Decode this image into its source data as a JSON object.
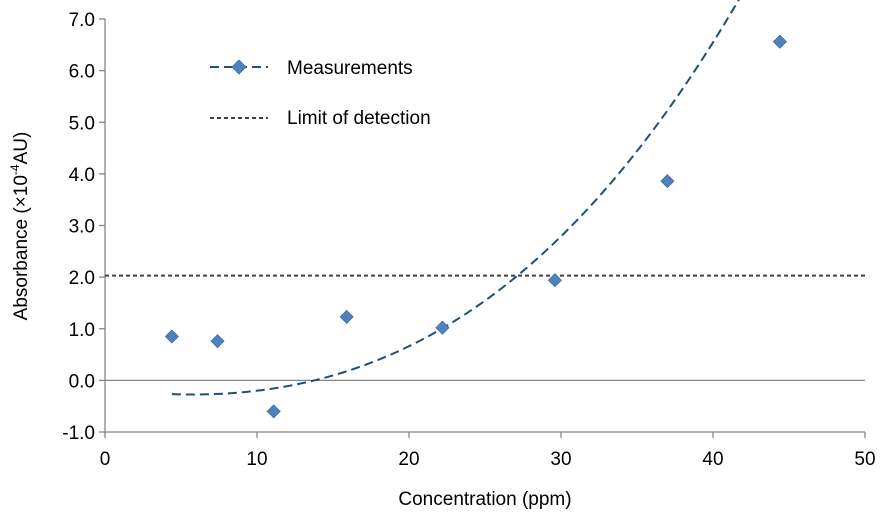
{
  "chart_data": {
    "type": "scatter",
    "xlabel": "Concentration (ppm)",
    "ylabel_parts": {
      "prefix": "Absorbance (×10",
      "sup": "-4",
      "suffix": "AU)"
    },
    "xlim": [
      0,
      50
    ],
    "ylim": [
      -1.0,
      7.0
    ],
    "x_ticks": [
      "0",
      "10",
      "20",
      "30",
      "40",
      "50"
    ],
    "y_ticks": [
      "-1.0",
      "0.0",
      "1.0",
      "2.0",
      "3.0",
      "4.0",
      "5.0",
      "6.0",
      "7.0"
    ],
    "grid": false,
    "legend_position": "top-left",
    "series": [
      {
        "name": "Measurements",
        "color": "#4f81bd",
        "line_color": "#1f4e79",
        "marker": "diamond",
        "x": [
          4.4,
          7.4,
          11.1,
          15.9,
          22.2,
          29.6,
          37.0,
          44.4
        ],
        "y": [
          0.85,
          0.76,
          -0.6,
          1.23,
          1.02,
          1.94,
          3.86,
          6.56
        ],
        "trendline": {
          "type": "polynomial",
          "x_range": [
            4.4,
            45.3
          ],
          "coefficients": [
            -0.1637,
            -0.03645,
            0.002667,
            6.096e-05
          ]
        }
      }
    ],
    "reference_line": {
      "name": "Limit of detection",
      "y": 2.03,
      "color": "#404040"
    }
  }
}
